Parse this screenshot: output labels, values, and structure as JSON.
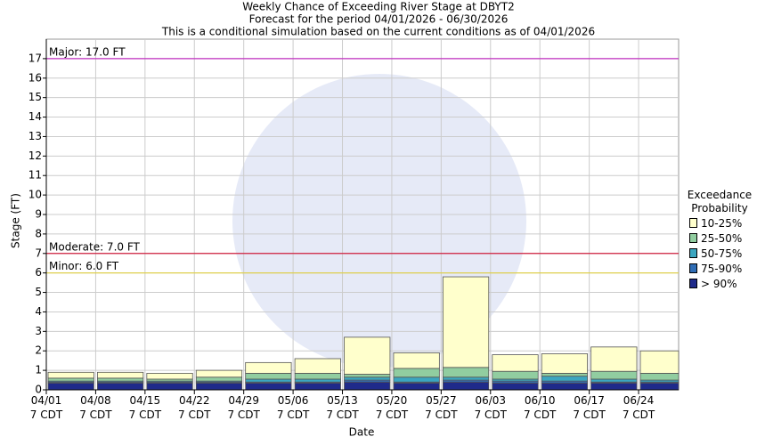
{
  "chart_data": {
    "type": "stacked-bar",
    "title": "Weekly Chance of Exceeding River Stage at DBYT2",
    "subtitle": "Forecast for the period 04/01/2026 - 06/30/2026",
    "note": "This is a conditional simulation based on the current conditions as of 04/01/2026",
    "y_label": "Stage (FT)",
    "x_label": "Date",
    "legend_title": "Exceedance Probability",
    "categories": [
      "04/01 7 CDT",
      "04/08 7 CDT",
      "04/15 7 CDT",
      "04/22 7 CDT",
      "04/29 7 CDT",
      "05/06 7 CDT",
      "05/13 7 CDT",
      "05/20 7 CDT",
      "05/27 7 CDT",
      "06/03 7 CDT",
      "06/10 7 CDT",
      "06/17 7 CDT",
      "06/24 7 CDT"
    ],
    "series": [
      {
        "name": "> 90%",
        "color": "#1f2a8a",
        "values": [
          0.35,
          0.35,
          0.35,
          0.35,
          0.35,
          0.35,
          0.4,
          0.35,
          0.4,
          0.35,
          0.35,
          0.35,
          0.35
        ]
      },
      {
        "name": "75-90%",
        "color": "#2f6db5",
        "values": [
          0.05,
          0.05,
          0.05,
          0.05,
          0.05,
          0.05,
          0.1,
          0.05,
          0.1,
          0.1,
          0.1,
          0.05,
          0.05
        ]
      },
      {
        "name": "50-75%",
        "color": "#3ba6c0",
        "values": [
          0.05,
          0.05,
          0.05,
          0.05,
          0.15,
          0.15,
          0.15,
          0.25,
          0.15,
          0.1,
          0.25,
          0.15,
          0.1
        ]
      },
      {
        "name": "25-50%",
        "color": "#91cda0",
        "values": [
          0.15,
          0.15,
          0.1,
          0.2,
          0.3,
          0.3,
          0.15,
          0.45,
          0.5,
          0.4,
          0.15,
          0.4,
          0.35
        ]
      },
      {
        "name": "10-25%",
        "color": "#ffffcc",
        "values": [
          0.3,
          0.3,
          0.3,
          0.35,
          0.55,
          0.75,
          1.9,
          0.8,
          4.65,
          0.85,
          1.0,
          1.25,
          1.15
        ]
      }
    ],
    "thresholds": [
      {
        "label": "Major: 17.0 FT",
        "value": 17,
        "color": "#c030c0"
      },
      {
        "label": "Moderate: 7.0 FT",
        "value": 7,
        "color": "#d02040"
      },
      {
        "label": "Minor: 6.0 FT",
        "value": 6,
        "color": "#e0d040"
      }
    ],
    "ylim": [
      0,
      18
    ],
    "yticks": [
      0,
      1,
      2,
      3,
      4,
      5,
      6,
      7,
      8,
      9,
      10,
      11,
      12,
      13,
      14,
      15,
      16,
      17
    ],
    "grid": true
  }
}
